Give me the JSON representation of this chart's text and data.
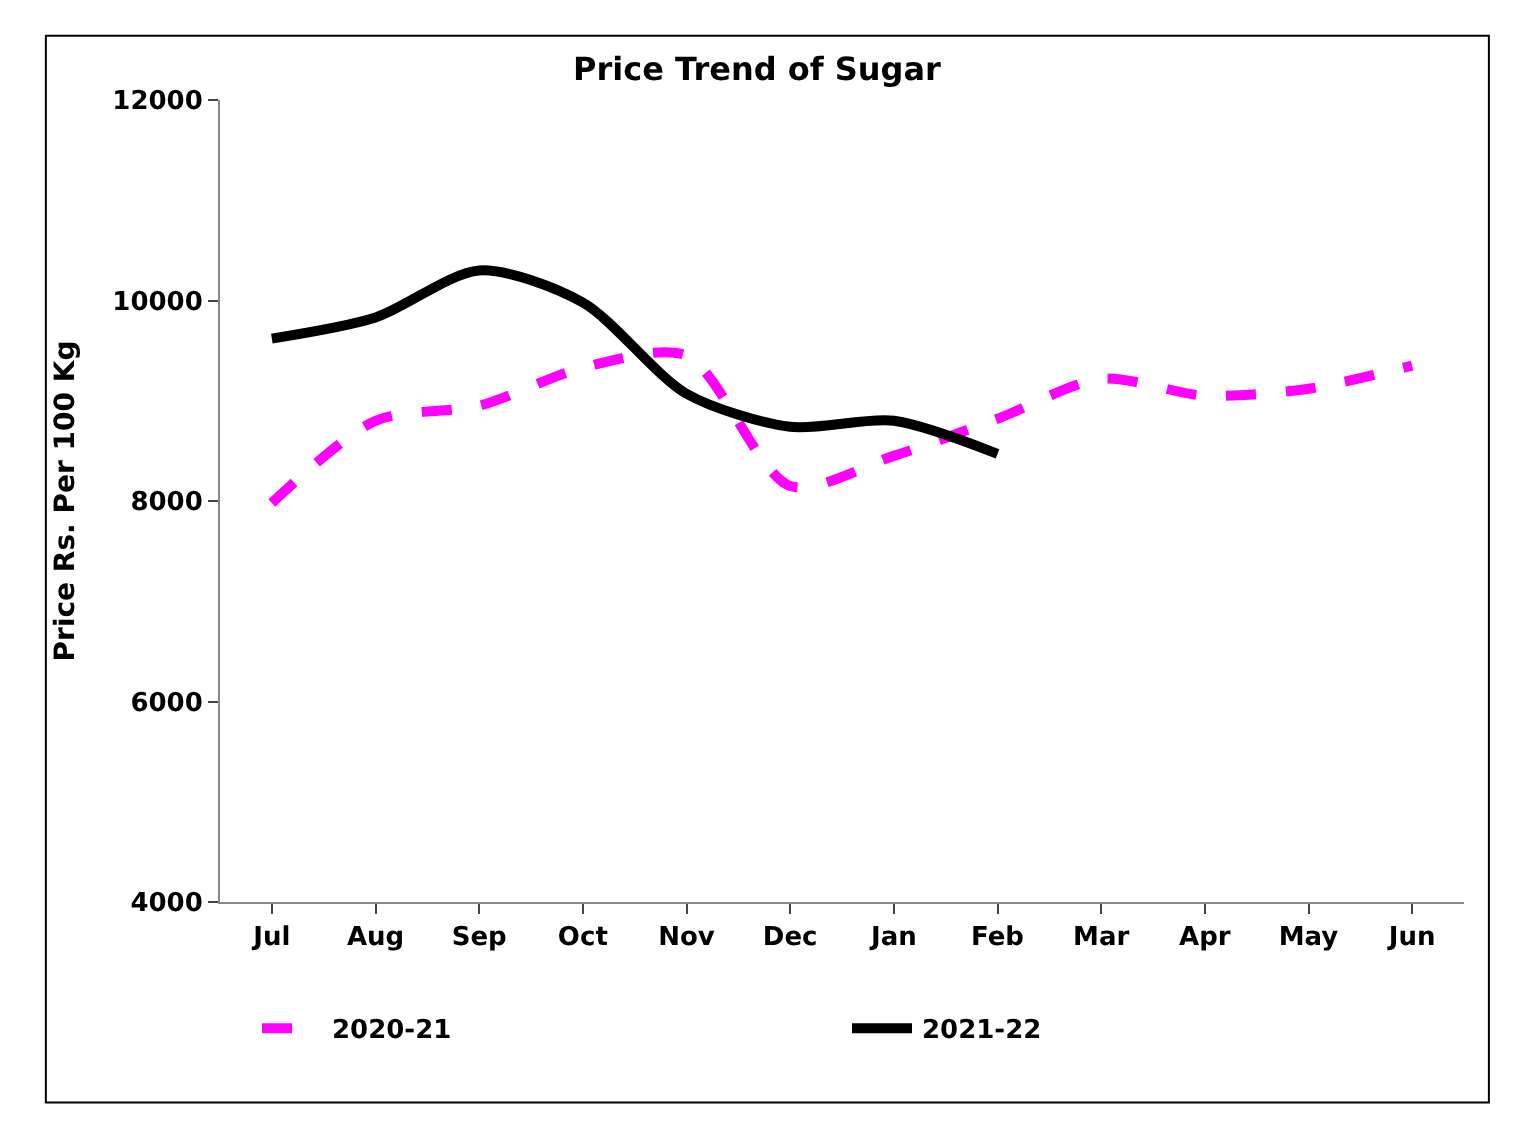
{
  "chart_data": {
    "type": "line",
    "title": "Price Trend of Sugar",
    "ylabel": "Price Rs. Per 100 Kg",
    "categories": [
      "Jul",
      "Aug",
      "Sep",
      "Oct",
      "Nov",
      "Dec",
      "Jan",
      "Feb",
      "Mar",
      "Apr",
      "May",
      "Jun"
    ],
    "series": [
      {
        "name": "2020-21",
        "color": "#ff00ff",
        "line_style": "dashed",
        "values": [
          7980,
          8800,
          8950,
          9330,
          9450,
          8150,
          8450,
          8820,
          9220,
          9050,
          9120,
          9350
        ]
      },
      {
        "name": "2021-22",
        "color": "#000000",
        "line_style": "solid",
        "values": [
          9620,
          9830,
          10300,
          9980,
          9070,
          8740,
          8800,
          8470,
          null,
          null,
          null,
          null
        ]
      }
    ],
    "ylim": [
      4000,
      12000
    ],
    "yticks": [
      4000,
      6000,
      8000,
      10000,
      12000
    ],
    "legend": "bottom",
    "marker": "none"
  }
}
